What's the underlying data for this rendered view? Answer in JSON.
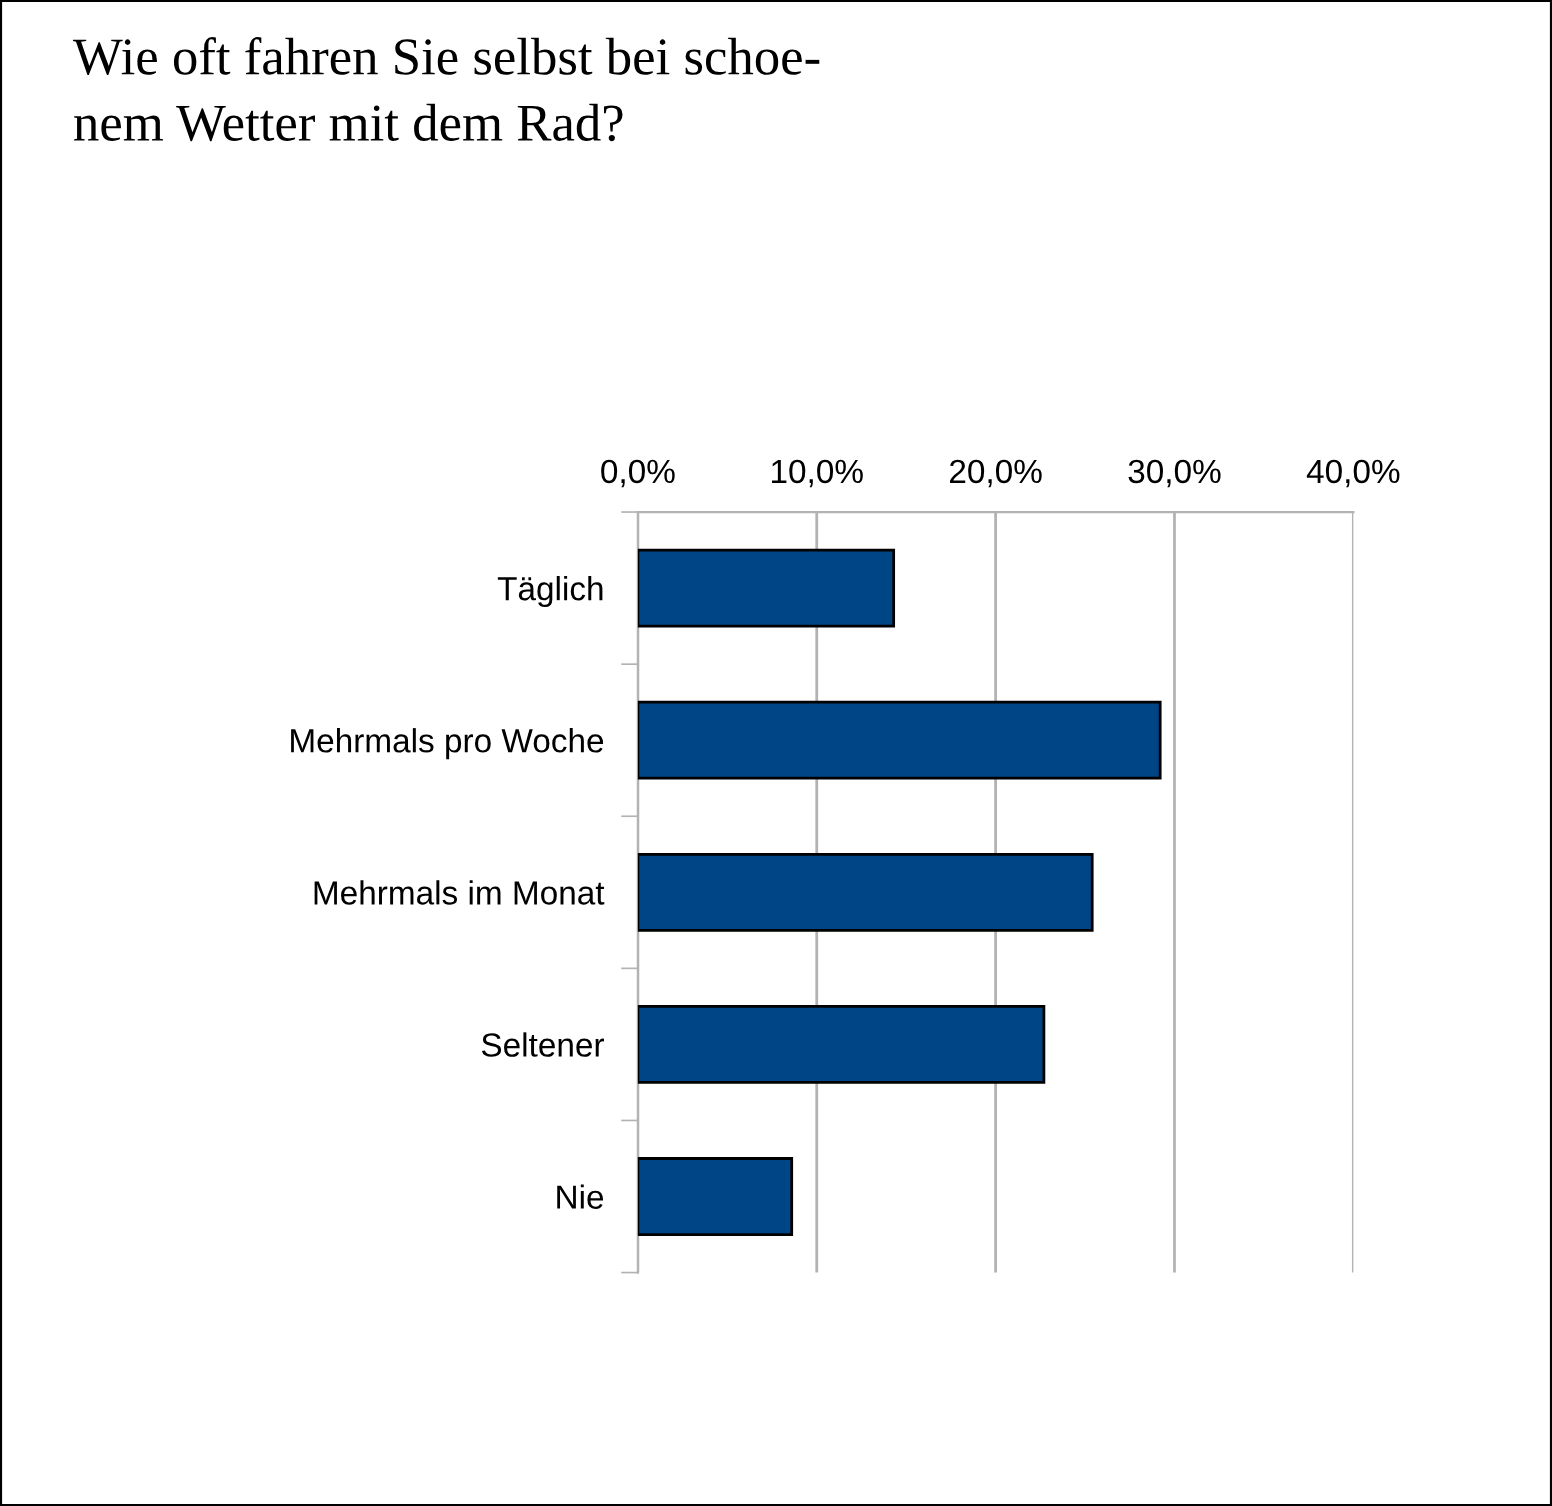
{
  "chart_data": {
    "type": "bar",
    "orientation": "horizontal",
    "title": "Wie oft fahren Sie selbst bei schoe-\nnem Wetter mit dem Rad?",
    "categories": [
      "Täglich",
      "Mehrmals pro Woche",
      "Mehrmals im Monat",
      "Seltener",
      "Nie"
    ],
    "values": [
      14.3,
      29.2,
      25.4,
      22.7,
      8.6
    ],
    "color": "#004586",
    "xlim": [
      0,
      40
    ],
    "xticks": [
      {
        "value": 0,
        "label": "0,0%"
      },
      {
        "value": 10,
        "label": "10,0%"
      },
      {
        "value": 20,
        "label": "20,0%"
      },
      {
        "value": 30,
        "label": "30,0%"
      },
      {
        "value": 40,
        "label": "40,0%"
      }
    ],
    "grid": "x",
    "legend": false
  }
}
